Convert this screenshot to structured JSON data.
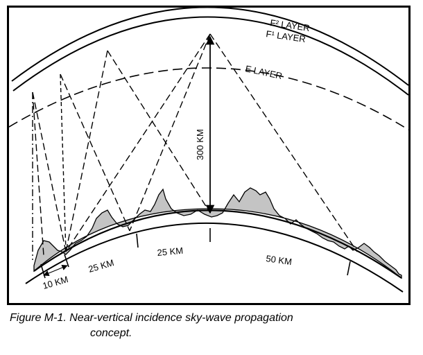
{
  "diagram": {
    "layers": {
      "f2": "F² LAYER",
      "f1": "F¹ LAYER",
      "e": "E LAYER"
    },
    "height_label": "300 KM",
    "distances": {
      "d1": "10 KM",
      "d2": "25 KM",
      "d3": "25 KM",
      "d4": "50 KM"
    }
  },
  "caption": {
    "line1": "Figure M-1. Near-vertical incidence sky-wave propagation",
    "line2": "concept."
  }
}
